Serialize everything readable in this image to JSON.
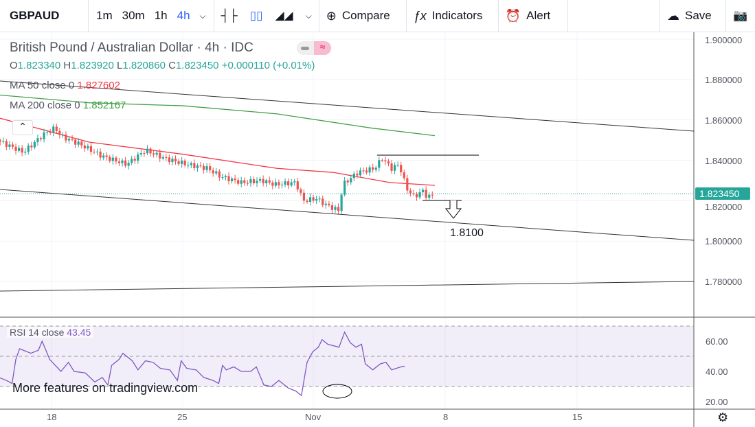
{
  "toolbar": {
    "symbol": "GBPAUD",
    "timeframes": [
      "1m",
      "30m",
      "1h",
      "4h"
    ],
    "active_timeframe": "4h",
    "compare": "Compare",
    "indicators": "Indicators",
    "alert": "Alert",
    "save": "Save"
  },
  "legend": {
    "title": "British Pound / Australian Dollar · 4h · IDC",
    "o_label": "O",
    "o": "1.823340",
    "h_label": "H",
    "h": "1.823920",
    "l_label": "L",
    "l": "1.820860",
    "c_label": "C",
    "c": "1.823450",
    "change": "+0.000110 (+0.01%)",
    "ma50_label": "MA 50 close 0",
    "ma50": "1.827602",
    "ma200_label": "MA 200 close 0",
    "ma200": "1.852167"
  },
  "colors": {
    "up": "#26a69a",
    "down": "#ef5350",
    "ma50": "#f23645",
    "ma200": "#43a047",
    "rsi": "#7e57c2"
  },
  "annotation": "1.8100",
  "current_price": "1.823450",
  "price_axis": [
    "1.900000",
    "1.880000",
    "1.860000",
    "1.840000",
    "1.820000",
    "1.800000",
    "1.780000"
  ],
  "time_axis": [
    "18",
    "25",
    "Nov",
    "8",
    "15"
  ],
  "rsi": {
    "label": "RSI 14 close",
    "value": "43.45",
    "axis": [
      "60.00",
      "40.00",
      "20.00"
    ]
  },
  "watermark": "More features on tradingview.com",
  "chart_data": {
    "type": "candlestick",
    "price_keypoints": [
      [
        15.1,
        1.85
      ],
      [
        16.5,
        1.844
      ],
      [
        17,
        1.848
      ],
      [
        17.6,
        1.853
      ],
      [
        18.2,
        1.856
      ],
      [
        18.5,
        1.852
      ],
      [
        19.5,
        1.848
      ],
      [
        20.7,
        1.842
      ],
      [
        22,
        1.838
      ],
      [
        23,
        1.845
      ],
      [
        24,
        1.841
      ],
      [
        25.2,
        1.838
      ],
      [
        26.3,
        1.836
      ],
      [
        27,
        1.832
      ],
      [
        28.1,
        1.829
      ],
      [
        29.2,
        1.83
      ],
      [
        29.9,
        1.828
      ],
      [
        31,
        1.829
      ],
      [
        31.4,
        1.82
      ],
      [
        32.1,
        1.821
      ],
      [
        32.6,
        1.818
      ],
      [
        33.3,
        1.815
      ],
      [
        33.5,
        1.828
      ],
      [
        34.3,
        1.834
      ],
      [
        35.2,
        1.836
      ],
      [
        35.6,
        1.841
      ],
      [
        36.1,
        1.836
      ],
      [
        36.5,
        1.838
      ],
      [
        36.9,
        1.826
      ],
      [
        37.3,
        1.822
      ],
      [
        37.8,
        1.825
      ],
      [
        38,
        1.8215
      ],
      [
        38.4,
        1.8234
      ]
    ],
    "rsi_keypoints": [
      [
        15.0,
        43
      ],
      [
        15.2,
        36
      ],
      [
        15.6,
        34
      ],
      [
        15.9,
        32
      ],
      [
        16.1,
        48
      ],
      [
        16.3,
        55
      ],
      [
        16.9,
        52
      ],
      [
        17.3,
        54
      ],
      [
        17.5,
        60
      ],
      [
        17.9,
        48
      ],
      [
        18.5,
        40
      ],
      [
        18.9,
        46
      ],
      [
        19.2,
        40
      ],
      [
        19.8,
        39
      ],
      [
        20.3,
        33
      ],
      [
        20.7,
        36
      ],
      [
        21.0,
        31
      ],
      [
        21.2,
        44
      ],
      [
        21.6,
        48
      ],
      [
        21.8,
        52
      ],
      [
        22.3,
        47
      ],
      [
        22.6,
        41
      ],
      [
        23.0,
        47
      ],
      [
        23.4,
        46
      ],
      [
        23.8,
        42
      ],
      [
        24.3,
        41
      ],
      [
        24.7,
        34
      ],
      [
        24.9,
        47
      ],
      [
        25.2,
        42
      ],
      [
        25.7,
        41
      ],
      [
        26.1,
        36
      ],
      [
        26.6,
        34
      ],
      [
        26.9,
        32
      ],
      [
        27.1,
        44
      ],
      [
        27.3,
        41
      ],
      [
        27.7,
        43
      ],
      [
        28.1,
        40
      ],
      [
        28.6,
        40
      ],
      [
        28.9,
        43
      ],
      [
        29.3,
        31
      ],
      [
        29.7,
        30
      ],
      [
        30.1,
        34
      ],
      [
        30.6,
        29
      ],
      [
        31.0,
        27
      ],
      [
        31.3,
        24
      ],
      [
        31.6,
        46
      ],
      [
        31.9,
        53
      ],
      [
        32.2,
        56
      ],
      [
        32.4,
        61
      ],
      [
        32.7,
        58
      ],
      [
        33.3,
        56
      ],
      [
        33.6,
        66
      ],
      [
        33.9,
        59
      ],
      [
        34.2,
        56
      ],
      [
        34.5,
        58
      ],
      [
        34.7,
        45
      ],
      [
        35.1,
        41
      ],
      [
        35.5,
        45
      ],
      [
        35.8,
        46
      ],
      [
        36.1,
        41
      ],
      [
        36.6,
        43
      ],
      [
        36.8,
        43.45
      ]
    ],
    "ma50_keypoints": [
      [
        15,
        1.8615
      ],
      [
        20,
        1.849
      ],
      [
        25,
        1.843
      ],
      [
        30,
        1.836
      ],
      [
        33,
        1.834
      ],
      [
        36,
        1.829
      ],
      [
        38.4,
        1.8276
      ]
    ],
    "ma200_keypoints": [
      [
        15,
        1.8725
      ],
      [
        20,
        1.8685
      ],
      [
        25,
        1.867
      ],
      [
        30,
        1.863
      ],
      [
        35,
        1.856
      ],
      [
        38.4,
        1.8522
      ]
    ],
    "ylim": [
      1.765,
      1.905
    ],
    "rsi_ylim": [
      20,
      70
    ]
  }
}
